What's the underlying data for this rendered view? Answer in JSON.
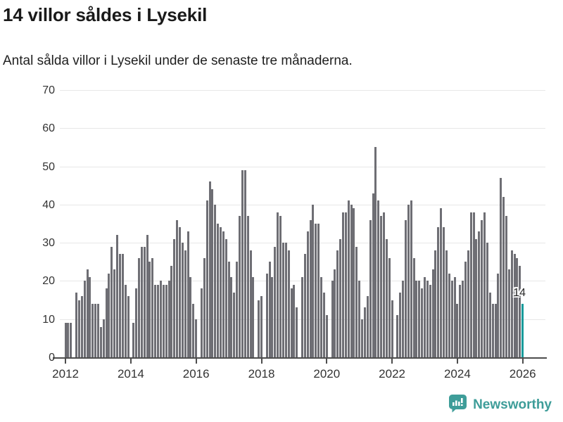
{
  "header": {
    "title": "14 villor såldes i Lysekil",
    "subtitle": "Antal sålda villor i Lysekil under de senaste tre månaderna."
  },
  "footer": {
    "brand": "Newsworthy",
    "logo_icon": "bar-chart-speech-bubble-icon",
    "brand_color": "#3e9d99"
  },
  "colors": {
    "bar": "#6e6e74",
    "highlight": "#189b9b",
    "grid": "#e7e7e7",
    "axis": "#4d4d4d",
    "tick_text": "#333333"
  },
  "chart_data": {
    "type": "bar",
    "title": "14 villor såldes i Lysekil",
    "subtitle": "Antal sålda villor i Lysekil under de senaste tre månaderna.",
    "x_start": "2012-01",
    "frequency": "monthly",
    "values": [
      9,
      9,
      9,
      0,
      17,
      15,
      16,
      20,
      23,
      21,
      14,
      14,
      14,
      8,
      10,
      18,
      22,
      29,
      23,
      32,
      27,
      27,
      19,
      16,
      0,
      9,
      18,
      26,
      29,
      29,
      32,
      25,
      26,
      19,
      19,
      20,
      19,
      19,
      20,
      24,
      31,
      36,
      34,
      30,
      28,
      33,
      21,
      14,
      10,
      0,
      18,
      26,
      41,
      46,
      44,
      40,
      35,
      34,
      33,
      31,
      25,
      21,
      17,
      25,
      37,
      49,
      49,
      37,
      28,
      21,
      0,
      15,
      16,
      0,
      22,
      25,
      21,
      29,
      38,
      37,
      30,
      30,
      28,
      18,
      19,
      13,
      0,
      21,
      27,
      33,
      36,
      40,
      35,
      35,
      21,
      17,
      11,
      0,
      20,
      23,
      28,
      31,
      38,
      38,
      41,
      40,
      39,
      29,
      20,
      10,
      13,
      16,
      36,
      43,
      55,
      41,
      37,
      38,
      31,
      26,
      15,
      0,
      11,
      17,
      20,
      36,
      40,
      41,
      26,
      20,
      20,
      18,
      21,
      20,
      19,
      23,
      28,
      34,
      39,
      34,
      28,
      22,
      20,
      21,
      14,
      19,
      20,
      25,
      28,
      38,
      38,
      31,
      33,
      36,
      38,
      30,
      17,
      14,
      14,
      22,
      47,
      42,
      37,
      23,
      28,
      27,
      26,
      24,
      14
    ],
    "highlight_last": true,
    "last_value_label": "14",
    "ylabel": "",
    "xlabel": "",
    "ylim": [
      0,
      70
    ],
    "yticks": [
      0,
      10,
      20,
      30,
      40,
      50,
      60,
      70
    ],
    "xtick_labels": [
      "2012",
      "2014",
      "2016",
      "2018",
      "2020",
      "2022",
      "2024",
      "2026"
    ],
    "xtick_month_interval": 24,
    "grid": true,
    "legend": "none"
  }
}
